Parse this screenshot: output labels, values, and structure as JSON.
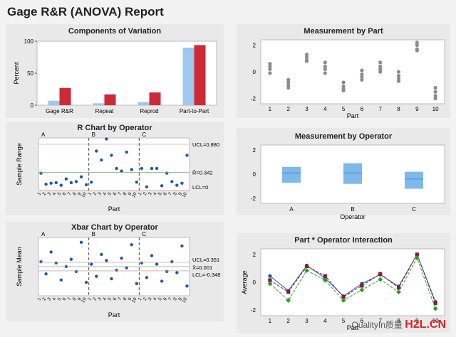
{
  "report_title": "Gage R&R (ANOVA) Report",
  "watermark": {
    "text": "QualityIn质量",
    "brand": "H2L.CN"
  },
  "colors": {
    "blue": "#9ec8ee",
    "red": "#cc2a36",
    "dot": "#1f56b0",
    "gray": "#8c8c8c",
    "box": "#7fb8ea"
  },
  "chart_data": [
    {
      "id": "components",
      "type": "bar",
      "title": "Components of Variation",
      "ylabel": "Percent",
      "ylim": [
        0,
        100
      ],
      "yticks": [
        0,
        50,
        100
      ],
      "categories": [
        "Gage R&R",
        "Repeat",
        "Reprod",
        "Part-to-Part"
      ],
      "series": [
        {
          "values": [
            7,
            3,
            5,
            90
          ]
        },
        {
          "values": [
            27,
            17,
            20,
            94
          ]
        }
      ]
    },
    {
      "id": "meas_by_part",
      "type": "scatter",
      "title": "Measurement by Part",
      "xlabel": "Part",
      "xticks": [
        "1",
        "2",
        "3",
        "4",
        "5",
        "6",
        "7",
        "8",
        "9",
        "10"
      ],
      "yticks": [
        -2,
        0,
        2
      ],
      "ylim": [
        -2.4,
        2.4
      ],
      "points": [
        [
          0.6,
          0.4,
          0.2,
          -0.1
        ],
        [
          -0.6,
          -0.8,
          -1.0,
          -1.2
        ],
        [
          1.3,
          1.1,
          0.9,
          0.8
        ],
        [
          0.7,
          0.4,
          0.2,
          -0.1
        ],
        [
          -0.8,
          -1.1,
          -1.3,
          -1.4
        ],
        [
          0.1,
          -0.2,
          -0.4,
          -0.6
        ],
        [
          0.7,
          0.4,
          0.2,
          0.0
        ],
        [
          0.0,
          -0.3,
          -0.5,
          -0.7
        ],
        [
          2.2,
          2.0,
          1.7,
          1.6
        ],
        [
          -1.2,
          -1.5,
          -1.8,
          -2.0
        ]
      ]
    },
    {
      "id": "r_chart",
      "type": "line",
      "title": "R Chart by Operator",
      "xlabel": "Part",
      "ylabel": "Sample Range",
      "operators": [
        "A",
        "B",
        "C"
      ],
      "xticks": [
        "1",
        "2",
        "3",
        "4",
        "5",
        "6",
        "7",
        "8",
        "9",
        "10"
      ],
      "ylim": [
        0,
        1.0
      ],
      "limits": {
        "ucl_label": "UCL=0.880",
        "center_label": "R̄=0.342",
        "lcl_label": "LCL=0",
        "ucl": 0.88,
        "center": 0.342,
        "lcl": 0
      },
      "values": [
        [
          0.33,
          0.12,
          0.14,
          0.15,
          0.1,
          0.22,
          0.15,
          0.17,
          0.26,
          0.11
        ],
        [
          0.16,
          0.75,
          0.58,
          0.98,
          0.67,
          0.42,
          0.37,
          0.73,
          0.4,
          0.16
        ],
        [
          0.42,
          0.07,
          0.42,
          0.42,
          0.09,
          0.33,
          0.17,
          0.1,
          0.14,
          0.67
        ]
      ]
    },
    {
      "id": "meas_by_operator",
      "type": "box",
      "title": "Measurement by Operator",
      "xlabel": "Operator",
      "categories": [
        "A",
        "B",
        "C"
      ],
      "yticks": [
        -2,
        0,
        2
      ],
      "ylim": [
        -2.4,
        2.4
      ],
      "boxes": [
        {
          "q1": -0.7,
          "median": 0.1,
          "q3": 0.6
        },
        {
          "q1": -0.8,
          "median": 0.1,
          "q3": 0.9
        },
        {
          "q1": -1.2,
          "median": -0.4,
          "q3": 0.2
        }
      ]
    },
    {
      "id": "xbar_chart",
      "type": "line",
      "title": "Xbar Chart by Operator",
      "xlabel": "Part",
      "ylabel": "Sample Mean",
      "operators": [
        "A",
        "B",
        "C"
      ],
      "xticks": [
        "1",
        "2",
        "3",
        "4",
        "5",
        "6",
        "7",
        "8",
        "9",
        "10"
      ],
      "ylim": [
        -2.4,
        2.4
      ],
      "limits": {
        "ucl_label": "UCL=0.351",
        "center_label": "X̄=0.001",
        "lcl_label": "LCL=-0.348",
        "ucl": 0.351,
        "center": 0.001,
        "lcl": -0.348
      },
      "values": [
        [
          0.4,
          -0.6,
          1.2,
          0.3,
          -1.1,
          0.0,
          0.6,
          -0.4,
          2.0,
          -1.3
        ],
        [
          0.2,
          -0.8,
          1.0,
          0.5,
          -1.0,
          -0.3,
          0.7,
          -0.1,
          1.8,
          -1.4
        ],
        [
          0.3,
          -0.9,
          0.9,
          0.2,
          -1.2,
          -0.4,
          0.4,
          -0.5,
          1.7,
          -1.6
        ]
      ]
    },
    {
      "id": "interaction",
      "type": "line",
      "title": "Part * Operator Interaction",
      "xlabel": "Part",
      "ylabel": "Average",
      "xticks": [
        "1",
        "2",
        "3",
        "4",
        "5",
        "6",
        "7",
        "8",
        "9",
        "10"
      ],
      "yticks": [
        -2,
        0,
        2
      ],
      "ylim": [
        -2.4,
        2.4
      ],
      "series": [
        {
          "color": "#1f56b0",
          "values": [
            0.45,
            -0.6,
            1.2,
            0.3,
            -1.0,
            -0.1,
            0.55,
            -0.3,
            2.0,
            -1.4
          ]
        },
        {
          "color": "#8b1a2a",
          "values": [
            0.15,
            -0.7,
            1.15,
            0.45,
            -1.05,
            -0.25,
            0.6,
            -0.4,
            2.0,
            -1.5
          ]
        },
        {
          "color": "#2aa02a",
          "values": [
            -0.1,
            -1.3,
            0.85,
            0.15,
            -1.3,
            -0.55,
            0.2,
            -0.7,
            1.75,
            -1.9
          ]
        }
      ]
    }
  ]
}
